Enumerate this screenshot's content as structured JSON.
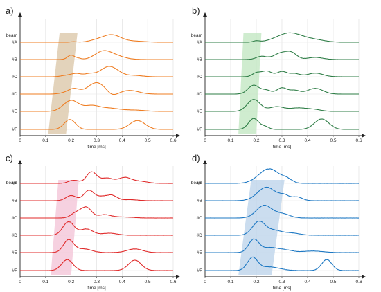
{
  "chart_data": [
    {
      "type": "line",
      "panel": "a)",
      "color": "#ef7d22",
      "band_color": "#d9c4a4",
      "y_axis_label": "beam",
      "xlabel": "time [ms]",
      "xlim": [
        0,
        0.6
      ],
      "xticks": [
        "0",
        "0.1",
        "0.2",
        "0.3",
        "0.4",
        "0.5",
        "0.6"
      ],
      "band": {
        "top": [
          0.155,
          0.225
        ],
        "bottom": [
          0.11,
          0.18
        ]
      },
      "series": [
        {
          "name": "#A",
          "peaks": [
            [
              0.21,
              0.05,
              0.012
            ],
            [
              0.3,
              0.18,
              0.03
            ],
            [
              0.36,
              0.7,
              0.035
            ],
            [
              0.45,
              0.1,
              0.04
            ]
          ]
        },
        {
          "name": "#B",
          "peaks": [
            [
              0.2,
              0.42,
              0.014
            ],
            [
              0.23,
              0.1,
              0.01
            ],
            [
              0.32,
              0.55,
              0.03
            ],
            [
              0.36,
              0.45,
              0.04
            ]
          ]
        },
        {
          "name": "#C",
          "peaks": [
            [
              0.18,
              0.12,
              0.02
            ],
            [
              0.22,
              0.3,
              0.02
            ],
            [
              0.27,
              0.25,
              0.02
            ],
            [
              0.35,
              1.0,
              0.035
            ],
            [
              0.45,
              0.12,
              0.03
            ]
          ]
        },
        {
          "name": "#D",
          "peaks": [
            [
              0.17,
              0.08,
              0.02
            ],
            [
              0.21,
              0.5,
              0.022
            ],
            [
              0.3,
              1.1,
              0.035
            ],
            [
              0.36,
              -0.3,
              0.02
            ],
            [
              0.43,
              0.35,
              0.035
            ]
          ]
        },
        {
          "name": "#E",
          "peaks": [
            [
              0.2,
              1.05,
              0.03
            ],
            [
              0.28,
              0.5,
              0.03
            ],
            [
              0.35,
              0.3,
              0.04
            ],
            [
              0.45,
              0.12,
              0.04
            ]
          ]
        },
        {
          "name": "#F",
          "peaks": [
            [
              0.195,
              0.95,
              0.022
            ],
            [
              0.46,
              0.85,
              0.03
            ]
          ]
        }
      ]
    },
    {
      "type": "line",
      "panel": "b)",
      "color": "#2e7d46",
      "band_color": "#bfe6bf",
      "y_axis_label": "beam",
      "xlabel": "time [ms]",
      "xlim": [
        0,
        0.6
      ],
      "xticks": [
        "0",
        "0.1",
        "0.2",
        "0.3",
        "0.4",
        "0.5",
        "0.6"
      ],
      "band": {
        "top": [
          0.15,
          0.22
        ],
        "bottom": [
          0.13,
          0.2
        ]
      },
      "series": [
        {
          "name": "#A",
          "peaks": [
            [
              0.2,
              0.12,
              0.012
            ],
            [
              0.33,
              0.9,
              0.05
            ],
            [
              0.43,
              0.2,
              0.04
            ]
          ]
        },
        {
          "name": "#B",
          "peaks": [
            [
              0.22,
              0.3,
              0.02
            ],
            [
              0.3,
              0.65,
              0.03
            ],
            [
              0.34,
              0.45,
              0.02
            ],
            [
              0.43,
              0.2,
              0.03
            ]
          ]
        },
        {
          "name": "#C",
          "peaks": [
            [
              0.2,
              0.35,
              0.016
            ],
            [
              0.24,
              0.55,
              0.02
            ],
            [
              0.3,
              0.5,
              0.02
            ],
            [
              0.35,
              0.3,
              0.02
            ],
            [
              0.43,
              0.35,
              0.03
            ]
          ]
        },
        {
          "name": "#D",
          "peaks": [
            [
              0.19,
              0.85,
              0.022
            ],
            [
              0.24,
              0.35,
              0.018
            ],
            [
              0.3,
              0.6,
              0.02
            ],
            [
              0.35,
              0.35,
              0.02
            ],
            [
              0.43,
              0.55,
              0.03
            ]
          ]
        },
        {
          "name": "#E",
          "peaks": [
            [
              0.19,
              1.15,
              0.025
            ],
            [
              0.28,
              0.45,
              0.03
            ],
            [
              0.36,
              0.3,
              0.03
            ],
            [
              0.42,
              0.2,
              0.03
            ]
          ]
        },
        {
          "name": "#F",
          "peaks": [
            [
              0.19,
              1.05,
              0.02
            ],
            [
              0.235,
              0.25,
              0.015
            ],
            [
              0.455,
              1.0,
              0.028
            ]
          ]
        }
      ]
    },
    {
      "type": "line",
      "panel": "c)",
      "color": "#e02a2a",
      "band_color": "#f3c2d6",
      "y_axis_label": "beam",
      "xlabel": "time [ms]",
      "xlim": [
        0,
        0.6
      ],
      "xticks": [
        "0",
        "0.1",
        "0.2",
        "0.3",
        "0.4",
        "0.5",
        "0.6"
      ],
      "band": {
        "top": [
          0.15,
          0.23
        ],
        "bottom": [
          0.12,
          0.2
        ]
      },
      "series": [
        {
          "name": "#A",
          "peaks": [
            [
              0.21,
              0.3,
              0.02
            ],
            [
              0.28,
              1.1,
              0.02
            ],
            [
              0.34,
              0.5,
              0.025
            ],
            [
              0.41,
              0.55,
              0.025
            ],
            [
              0.47,
              0.2,
              0.03
            ]
          ]
        },
        {
          "name": "#B",
          "peaks": [
            [
              0.2,
              0.5,
              0.02
            ],
            [
              0.27,
              1.0,
              0.02
            ],
            [
              0.32,
              0.35,
              0.02
            ],
            [
              0.36,
              0.5,
              0.02
            ],
            [
              0.43,
              0.1,
              0.03
            ]
          ]
        },
        {
          "name": "#C",
          "peaks": [
            [
              0.22,
              0.5,
              0.02
            ],
            [
              0.26,
              1.0,
              0.02
            ],
            [
              0.33,
              0.3,
              0.025
            ],
            [
              0.4,
              0.1,
              0.04
            ]
          ]
        },
        {
          "name": "#D",
          "peaks": [
            [
              0.19,
              1.3,
              0.022
            ],
            [
              0.26,
              0.6,
              0.025
            ],
            [
              0.35,
              0.2,
              0.03
            ]
          ]
        },
        {
          "name": "#E",
          "peaks": [
            [
              0.19,
              1.2,
              0.02
            ],
            [
              0.25,
              0.35,
              0.03
            ],
            [
              0.45,
              0.35,
              0.03
            ]
          ]
        },
        {
          "name": "#F",
          "peaks": [
            [
              0.185,
              1.05,
              0.022
            ],
            [
              0.45,
              1.0,
              0.025
            ]
          ]
        }
      ]
    },
    {
      "type": "line",
      "panel": "d)",
      "color": "#1d78c3",
      "band_color": "#b9d2ea",
      "y_axis_label": "beam",
      "xlabel": "time [ms]",
      "xlim": [
        0,
        0.6
      ],
      "xticks": [
        "0",
        "0.1",
        "0.2",
        "0.3",
        "0.4",
        "0.5",
        "0.6"
      ],
      "band": {
        "top": [
          0.18,
          0.31
        ],
        "bottom": [
          0.13,
          0.26
        ]
      },
      "series": [
        {
          "name": "#A",
          "peaks": [
            [
              0.25,
              1.4,
              0.04
            ],
            [
              0.32,
              0.3,
              0.02
            ]
          ]
        },
        {
          "name": "#B",
          "peaks": [
            [
              0.24,
              1.3,
              0.035
            ],
            [
              0.31,
              0.45,
              0.02
            ],
            [
              0.36,
              0.35,
              0.02
            ]
          ]
        },
        {
          "name": "#C",
          "peaks": [
            [
              0.23,
              1.2,
              0.03
            ],
            [
              0.3,
              0.4,
              0.03
            ]
          ]
        },
        {
          "name": "#D",
          "peaks": [
            [
              0.21,
              1.3,
              0.025
            ],
            [
              0.27,
              0.45,
              0.03
            ],
            [
              0.34,
              0.2,
              0.03
            ]
          ]
        },
        {
          "name": "#E",
          "peaks": [
            [
              0.19,
              1.25,
              0.02
            ],
            [
              0.25,
              0.45,
              0.03
            ],
            [
              0.31,
              0.25,
              0.03
            ],
            [
              0.42,
              0.15,
              0.04
            ]
          ]
        },
        {
          "name": "#F",
          "peaks": [
            [
              0.185,
              1.2,
              0.02
            ],
            [
              0.25,
              0.35,
              0.04
            ],
            [
              0.475,
              1.05,
              0.02
            ]
          ]
        }
      ]
    }
  ]
}
